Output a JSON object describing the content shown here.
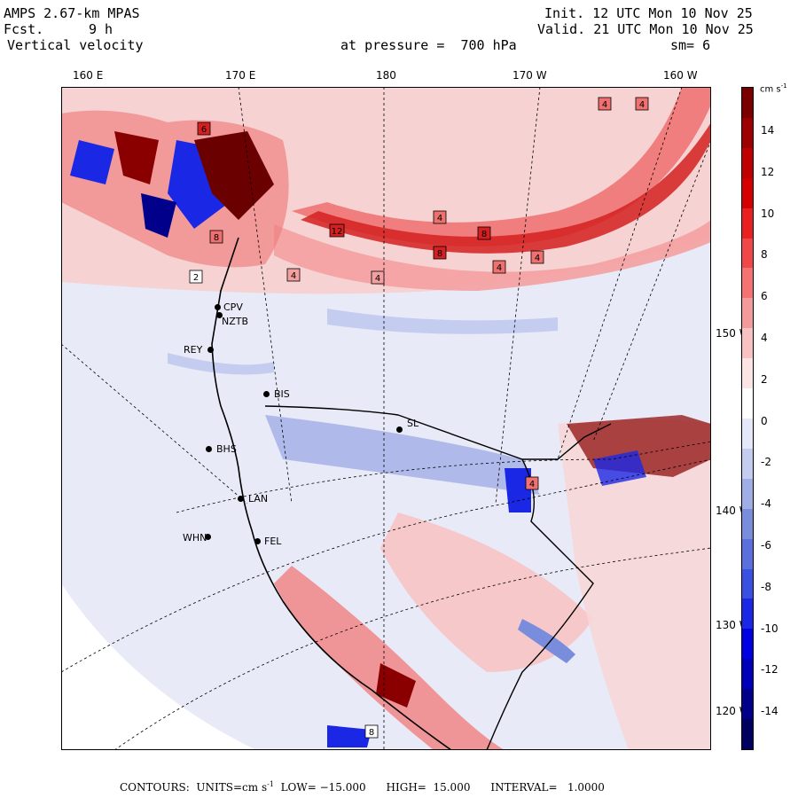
{
  "header": {
    "model": "AMPS 2.67-km MPAS",
    "fcst_label": "Fcst.",
    "fcst_value": "9 h",
    "field": "Vertical velocity",
    "init": "Init. 12 UTC Mon 10 Nov 25",
    "valid": "Valid. 21 UTC Mon 10 Nov 25",
    "level": "at pressure =  700 hPa",
    "smooth": "sm= 6"
  },
  "longitude_labels": [
    "160 E",
    "170 E",
    "180",
    "170 W",
    "160 W"
  ],
  "latitude_labels": [
    "150 W",
    "140 W",
    "130 W",
    "120 W"
  ],
  "stations": [
    "CPV",
    "NZTB",
    "REY",
    "BIS",
    "SL",
    "BHS",
    "LAN",
    "WHN",
    "FEL"
  ],
  "contour_tags": [
    "4",
    "4",
    "4",
    "4",
    "4",
    "8",
    "2",
    "6",
    "8",
    "12",
    "4",
    "4",
    "8",
    "8",
    "4"
  ],
  "colorbar": {
    "units": "cm s",
    "units_sup": "-1",
    "ticks": [
      "14",
      "12",
      "10",
      "8",
      "6",
      "4",
      "2",
      "0",
      "-2",
      "-4",
      "-6",
      "-8",
      "-10",
      "-12",
      "-14"
    ],
    "colors": [
      "#7a0000",
      "#9c0000",
      "#be0000",
      "#d40000",
      "#e82020",
      "#f04848",
      "#f47272",
      "#f49a9a",
      "#f8c2c2",
      "#fce4e4",
      "#ffffff",
      "#e4e8f8",
      "#c4ccf0",
      "#a0aee6",
      "#7a8cdc",
      "#5a70dc",
      "#3a50e0",
      "#1a28e6",
      "#0000e0",
      "#0000b8",
      "#00008a",
      "#000060"
    ]
  },
  "footer": {
    "contours": "CONTOURS:",
    "units": "UNITS=cm s",
    "units_sup": "-1",
    "low": "LOW= −15.000",
    "high": "HIGH=  15.000",
    "interval": "INTERVAL=   1.0000"
  }
}
